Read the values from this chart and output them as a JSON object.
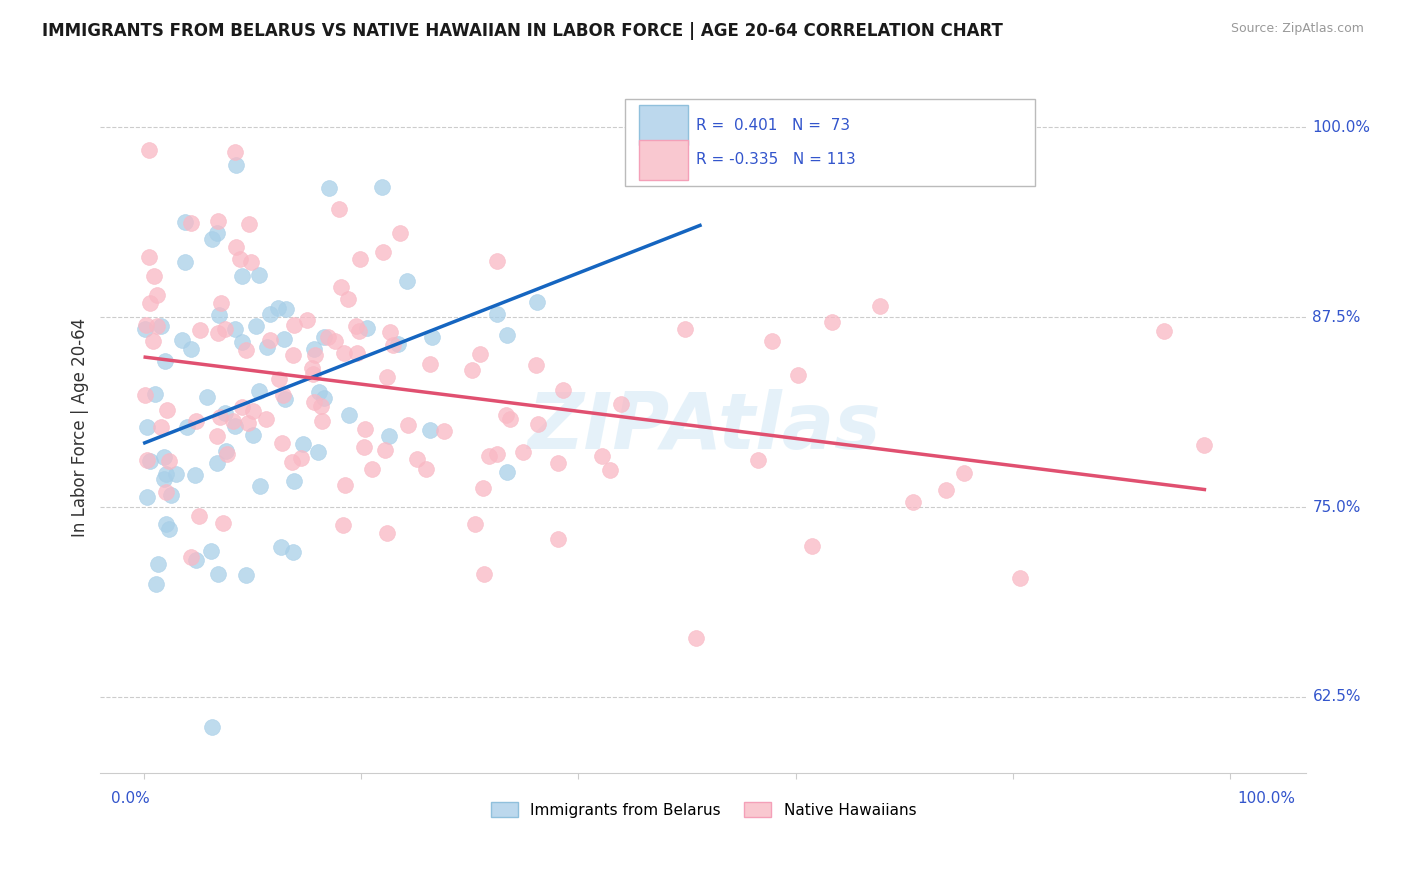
{
  "title": "IMMIGRANTS FROM BELARUS VS NATIVE HAWAIIAN IN LABOR FORCE | AGE 20-64 CORRELATION CHART",
  "source": "Source: ZipAtlas.com",
  "ylabel": "In Labor Force | Age 20-64",
  "ytick_vals": [
    0.625,
    0.75,
    0.875,
    1.0
  ],
  "ytick_labels": [
    "62.5%",
    "75.0%",
    "87.5%",
    "100.0%"
  ],
  "ymin": 0.575,
  "ymax": 1.03,
  "xmin": -0.004,
  "xmax": 0.107,
  "legend1_r": "0.401",
  "legend1_n": "73",
  "legend2_r": "-0.335",
  "legend2_n": "113",
  "blue_scatter_color": "#a8cfe8",
  "pink_scatter_color": "#f9b8c4",
  "blue_line_color": "#1565c0",
  "pink_line_color": "#e05070",
  "watermark": "ZIPAtlas",
  "legend_label1": "Immigrants from Belarus",
  "legend_label2": "Native Hawaiians",
  "text_color_blue": "#3355cc",
  "text_color_source": "#999999",
  "grid_color": "#cccccc"
}
